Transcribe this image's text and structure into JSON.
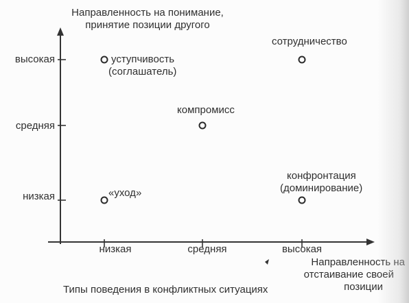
{
  "chart_data": {
    "type": "scatter",
    "title": "Типы поведения в конфликтных ситуациях",
    "ylabel_lines": [
      "Направленность на понимание,",
      "принятие позиции другого"
    ],
    "xlabel_lines": [
      "Направленность на",
      "отстаивание своей",
      "позиции"
    ],
    "x_categories": [
      "низкая",
      "средняя",
      "высокая"
    ],
    "y_categories": [
      "высокая",
      "средняя",
      "низкая"
    ],
    "points": [
      {
        "x": "низкая",
        "y": "высокая",
        "label_lines": [
          "уступчивость",
          "(соглашатель)"
        ]
      },
      {
        "x": "средняя",
        "y": "средняя",
        "label_lines": [
          "компромисс"
        ]
      },
      {
        "x": "высокая",
        "y": "высокая",
        "label_lines": [
          "сотрудничество"
        ]
      },
      {
        "x": "низкая",
        "y": "низкая",
        "label_lines": [
          "«уход»"
        ]
      },
      {
        "x": "высокая",
        "y": "низкая",
        "label_lines": [
          "конфронтация",
          "(доминирование)"
        ]
      }
    ],
    "grid": false,
    "legend": "none"
  }
}
